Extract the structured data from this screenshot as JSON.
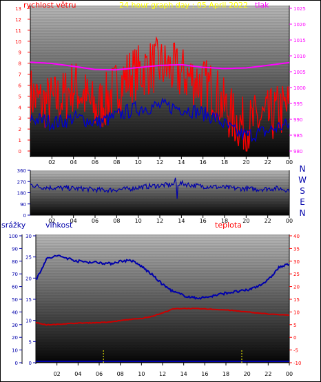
{
  "header": {
    "wind_label": "rychlost větru",
    "title": "24 hour graph day : 05 April 2022",
    "pressure_label": "tlak"
  },
  "compass": [
    "N",
    "W",
    "S",
    "E",
    "N"
  ],
  "lower_labels": {
    "rain": "srážky",
    "humidity": "vlhkost",
    "temperature": "teplota"
  },
  "colors": {
    "wind": "#ff0000",
    "gust": "#0000cc",
    "pressure": "#ff00ff",
    "direction": "#0000aa",
    "humidity": "#0000aa",
    "temperature": "#cc0000",
    "rain": "#ffff00",
    "frame": "#000000"
  },
  "chart_data": [
    {
      "type": "line",
      "title": "24 hour graph day : 05 April 2022",
      "x_ticks": [
        "02",
        "04",
        "06",
        "08",
        "10",
        "12",
        "14",
        "16",
        "18",
        "20",
        "22",
        "00"
      ],
      "left_axis": {
        "label": "rychlost větru",
        "ticks": [
          0,
          1,
          2,
          3,
          4,
          5,
          6,
          7,
          8,
          9,
          10,
          11,
          12,
          13
        ],
        "ylim": [
          0,
          13
        ]
      },
      "right_axis": {
        "label": "tlak",
        "ticks": [
          980,
          985,
          990,
          995,
          1000,
          1005,
          1010,
          1015,
          1020,
          1025
        ],
        "ylim": [
          980,
          1025
        ]
      },
      "series": [
        {
          "name": "rychlost větru",
          "axis": "left",
          "hours": [
            0,
            1,
            2,
            3,
            4,
            5,
            6,
            7,
            8,
            9,
            10,
            11,
            12,
            13,
            14,
            15,
            16,
            17,
            18,
            19,
            20,
            21,
            22,
            23,
            24
          ],
          "values": [
            5.2,
            4.4,
            4.5,
            4.8,
            6.0,
            5.0,
            3.8,
            4.6,
            5.8,
            6.8,
            7.2,
            7.6,
            7.8,
            7.4,
            7.0,
            6.6,
            6.0,
            5.6,
            4.0,
            2.8,
            2.2,
            2.8,
            3.0,
            3.6,
            4.0
          ]
        },
        {
          "hours": [
            0,
            1,
            2,
            3,
            4,
            5,
            6,
            7,
            8,
            9,
            10,
            11,
            12,
            13,
            14,
            15,
            16,
            17,
            18,
            19,
            20,
            21,
            22,
            23,
            24
          ],
          "values": [
            3.0,
            2.8,
            2.6,
            2.7,
            3.0,
            2.9,
            2.6,
            2.8,
            3.2,
            3.6,
            3.9,
            4.0,
            4.1,
            4.0,
            3.9,
            3.7,
            3.4,
            3.1,
            2.4,
            1.7,
            1.4,
            1.6,
            1.8,
            2.2,
            2.4
          ]
        },
        {
          "name": "tlak",
          "axis": "right",
          "hours": [
            0,
            2,
            4,
            6,
            8,
            10,
            12,
            14,
            16,
            18,
            20,
            22,
            24
          ],
          "values": [
            1008.0,
            1007.6,
            1006.7,
            1005.7,
            1005.6,
            1006.3,
            1007.0,
            1007.2,
            1006.4,
            1006.0,
            1006.2,
            1007.0,
            1007.9
          ]
        }
      ]
    },
    {
      "type": "line",
      "x_ticks": [
        "02",
        "04",
        "06",
        "08",
        "10",
        "12",
        "14",
        "16",
        "18",
        "20",
        "22",
        "00"
      ],
      "left_axis": {
        "ticks": [
          0,
          90,
          180,
          270,
          360
        ],
        "ylim": [
          0,
          360
        ]
      },
      "right_axis": {
        "labels": [
          "N",
          "W",
          "S",
          "E",
          "N"
        ]
      },
      "series": [
        {
          "hours": [
            0,
            1,
            2,
            3,
            4,
            5,
            6,
            7,
            8,
            9,
            10,
            11,
            12,
            13,
            14,
            15,
            16,
            17,
            18,
            19,
            20,
            21,
            22,
            23,
            24
          ],
          "values": [
            245,
            225,
            220,
            218,
            215,
            212,
            205,
            200,
            205,
            210,
            222,
            232,
            238,
            245,
            255,
            240,
            232,
            228,
            222,
            215,
            212,
            208,
            212,
            215,
            200
          ]
        }
      ]
    },
    {
      "type": "line",
      "x_ticks": [
        "02",
        "04",
        "06",
        "08",
        "10",
        "12",
        "14",
        "16",
        "18",
        "20",
        "22",
        "00"
      ],
      "rain_axis": {
        "label": "srážky",
        "ticks": [
          0,
          10,
          20,
          30,
          40,
          50,
          60,
          70,
          80,
          90,
          100
        ],
        "ylim": [
          0,
          100
        ]
      },
      "humidity_axis": {
        "label": "vlhkost",
        "ticks": [
          0,
          5,
          10,
          15,
          20,
          25,
          30
        ],
        "ylim": [
          0,
          30
        ]
      },
      "temperature_axis": {
        "label": "teplota",
        "ticks": [
          -10,
          -5,
          0,
          5,
          10,
          15,
          20,
          25,
          30,
          35,
          40
        ],
        "ylim": [
          -10,
          40
        ]
      },
      "series": [
        {
          "name": "vlhkost",
          "axis": "humidity",
          "hours": [
            0,
            1,
            2,
            3,
            4,
            5,
            6,
            7,
            8,
            9,
            10,
            11,
            12,
            13,
            14,
            15,
            16,
            17,
            18,
            19,
            20,
            21,
            22,
            23,
            24
          ],
          "values": [
            19.5,
            24.5,
            25.3,
            24.7,
            24.0,
            23.8,
            23.7,
            23.4,
            24.0,
            24.2,
            22.8,
            20.8,
            18.5,
            16.8,
            15.9,
            15.3,
            15.4,
            15.9,
            16.5,
            16.8,
            17.1,
            18.1,
            19.5,
            22.5,
            23.3
          ]
        },
        {
          "name": "teplota",
          "axis": "temperature",
          "hours": [
            0,
            1,
            2,
            3,
            4,
            5,
            6,
            7,
            8,
            9,
            10,
            11,
            12,
            13,
            14,
            15,
            16,
            17,
            18,
            19,
            20,
            21,
            22,
            23,
            24
          ],
          "values": [
            5.8,
            4.9,
            5.1,
            5.4,
            5.6,
            5.7,
            5.8,
            6.0,
            6.6,
            7.1,
            7.4,
            8.3,
            9.6,
            11.2,
            11.4,
            11.3,
            11.2,
            11.0,
            10.8,
            10.4,
            10.0,
            9.6,
            9.2,
            8.9,
            8.8
          ]
        },
        {
          "name": "srážky",
          "axis": "rain",
          "marker_hours": [
            6.4,
            19.5
          ]
        }
      ]
    }
  ]
}
